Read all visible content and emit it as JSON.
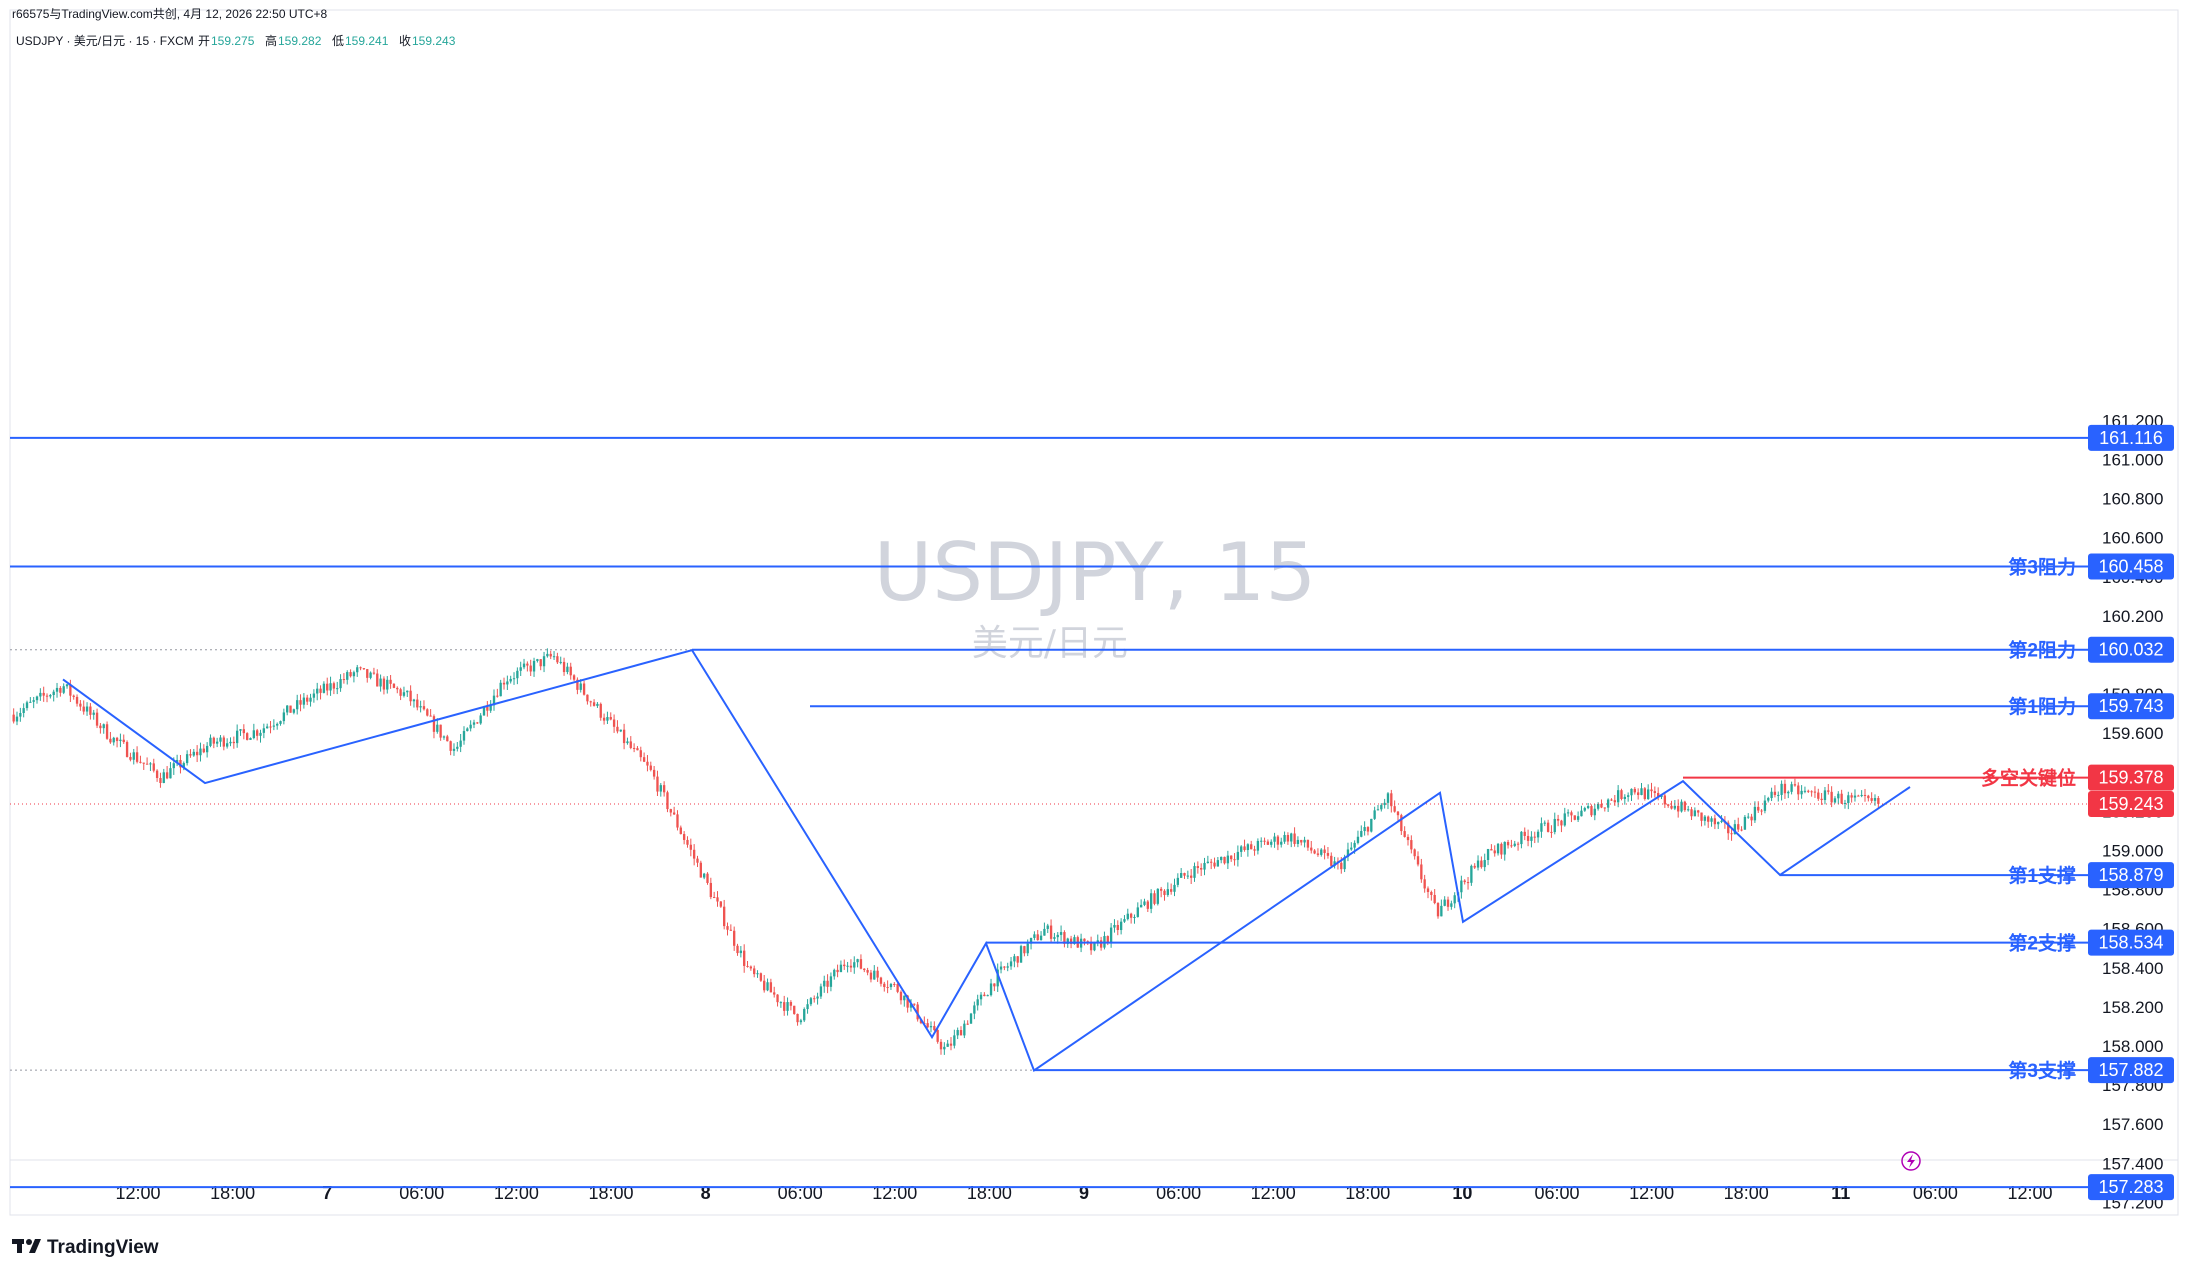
{
  "header": {
    "author_line": "r66575与TradingView.com共创, 4月 12, 2026 22:50 UTC+8",
    "symbol_line": "USDJPY · 美元/日元 · 15 · FXCM",
    "ohlc": [
      {
        "label": "开",
        "value": "159.275"
      },
      {
        "label": "高",
        "value": "159.282"
      },
      {
        "label": "低",
        "value": "159.241"
      },
      {
        "label": "收",
        "value": "159.243"
      }
    ]
  },
  "watermark": {
    "symbol": "USDJPY, 15",
    "name": "美元/日元"
  },
  "brand": {
    "name": "TradingView"
  },
  "colors": {
    "line": "#2962ff",
    "label_bg": "#2962ff",
    "up": "#26a69a",
    "down": "#ef5350",
    "key_level": "#f23645",
    "axis_text": "#131722"
  },
  "chart_data": {
    "type": "line",
    "instrument": "USDJPY",
    "timeframe": "15",
    "ylim": [
      157.14,
      161.29
    ],
    "y_ticks": [
      "161.200",
      "161.000",
      "160.800",
      "160.600",
      "160.400",
      "160.200",
      "159.800",
      "159.600",
      "159.200",
      "159.000",
      "158.800",
      "158.600",
      "158.400",
      "158.200",
      "158.000",
      "157.800",
      "157.600",
      "157.400",
      "157.200"
    ],
    "x_ticks": [
      {
        "label": "12:00",
        "bold": false
      },
      {
        "label": "18:00",
        "bold": false
      },
      {
        "label": "7",
        "bold": true
      },
      {
        "label": "06:00",
        "bold": false
      },
      {
        "label": "12:00",
        "bold": false
      },
      {
        "label": "18:00",
        "bold": false
      },
      {
        "label": "8",
        "bold": true
      },
      {
        "label": "06:00",
        "bold": false
      },
      {
        "label": "12:00",
        "bold": false
      },
      {
        "label": "18:00",
        "bold": false
      },
      {
        "label": "9",
        "bold": true
      },
      {
        "label": "06:00",
        "bold": false
      },
      {
        "label": "12:00",
        "bold": false
      },
      {
        "label": "18:00",
        "bold": false
      },
      {
        "label": "10",
        "bold": true
      },
      {
        "label": "06:00",
        "bold": false
      },
      {
        "label": "12:00",
        "bold": false
      },
      {
        "label": "18:00",
        "bold": false
      },
      {
        "label": "11",
        "bold": true
      },
      {
        "label": "06:00",
        "bold": false
      },
      {
        "label": "12:00",
        "bold": false
      }
    ],
    "levels": [
      {
        "name": "",
        "value": 161.116,
        "label": "161.116",
        "style": "full"
      },
      {
        "name": "第3阻力",
        "value": 160.458,
        "label": "160.458",
        "style": "full"
      },
      {
        "name": "第2阻力",
        "value": 160.032,
        "label": "160.032",
        "style": "ray"
      },
      {
        "name": "第1阻力",
        "value": 159.743,
        "label": "159.743",
        "style": "ray"
      },
      {
        "name": "多空关键位",
        "value": 159.378,
        "label": "159.378",
        "style": "key"
      },
      {
        "name": "第1支撑",
        "value": 158.879,
        "label": "158.879",
        "style": "ray"
      },
      {
        "name": "第2支撑",
        "value": 158.534,
        "label": "158.534",
        "style": "ray"
      },
      {
        "name": "第3支撑",
        "value": 157.882,
        "label": "157.882",
        "style": "ray"
      },
      {
        "name": "",
        "value": 157.283,
        "label": "157.283",
        "style": "full"
      }
    ],
    "last_price": {
      "value": 159.243,
      "label": "159.243"
    },
    "swing_path": [
      159.88,
      159.35,
      160.03,
      158.05,
      158.53,
      157.88,
      159.3,
      158.64,
      159.36,
      158.88,
      159.33
    ],
    "close_path": [
      159.7,
      159.85,
      159.58,
      159.38,
      159.55,
      159.62,
      159.78,
      159.92,
      159.8,
      159.52,
      159.88,
      160.0,
      159.7,
      159.4,
      158.9,
      158.38,
      158.15,
      158.45,
      158.3,
      157.98,
      158.35,
      158.6,
      158.5,
      158.72,
      158.9,
      159.0,
      159.08,
      158.92,
      159.28,
      158.68,
      158.98,
      159.1,
      159.2,
      159.32,
      159.22,
      159.1,
      159.32,
      159.28,
      159.243
    ]
  }
}
